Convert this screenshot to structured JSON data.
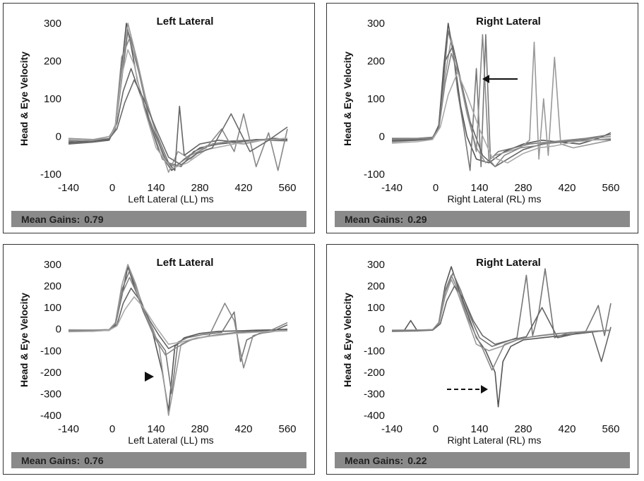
{
  "chart_data": [
    {
      "type": "line",
      "title": "Left Lateral",
      "xlabel": "Left Lateral (LL) ms",
      "ylabel": "Head & Eye Velocity",
      "xlim": [
        -140,
        560
      ],
      "ylim": [
        -100,
        300
      ],
      "xticks": [
        -140,
        0,
        140,
        280,
        420,
        560
      ],
      "yticks": [
        -100,
        0,
        100,
        200,
        300
      ],
      "mean_gains_label": "Mean Gains:",
      "mean_gains_value": "0.79",
      "series": [
        {
          "x": [
            -140,
            -60,
            -10,
            10,
            30,
            45,
            60,
            80,
            110,
            150,
            190,
            230,
            280,
            340,
            400,
            460,
            520,
            560
          ],
          "y": [
            -15,
            -12,
            -8,
            30,
            180,
            300,
            240,
            150,
            60,
            -40,
            -90,
            -60,
            -30,
            -20,
            -15,
            -10,
            -5,
            -8
          ]
        },
        {
          "x": [
            -140,
            -60,
            -10,
            10,
            30,
            50,
            70,
            100,
            140,
            180,
            220,
            260,
            320,
            380,
            440,
            500,
            560
          ],
          "y": [
            -10,
            -10,
            -5,
            20,
            150,
            280,
            230,
            120,
            10,
            -70,
            -80,
            -40,
            -20,
            -12,
            -10,
            -8,
            -5
          ]
        },
        {
          "x": [
            -140,
            -60,
            -10,
            10,
            30,
            50,
            80,
            110,
            150,
            180,
            210,
            250,
            300,
            360,
            420,
            480,
            560
          ],
          "y": [
            -5,
            -8,
            0,
            25,
            170,
            300,
            200,
            90,
            -20,
            -95,
            -40,
            -60,
            -25,
            -15,
            -20,
            -10,
            -12
          ]
        },
        {
          "x": [
            -140,
            -60,
            -10,
            15,
            35,
            60,
            90,
            130,
            170,
            200,
            215,
            230,
            280,
            340,
            400,
            460,
            560
          ],
          "y": [
            -20,
            -15,
            -10,
            35,
            120,
            180,
            110,
            20,
            -60,
            -90,
            80,
            -50,
            -20,
            -10,
            -15,
            -8,
            -10
          ]
        },
        {
          "x": [
            -140,
            -60,
            -10,
            10,
            30,
            55,
            85,
            120,
            160,
            200,
            250,
            300,
            350,
            390,
            420,
            460,
            500,
            530,
            560
          ],
          "y": [
            -12,
            -8,
            -5,
            30,
            210,
            260,
            170,
            40,
            -60,
            -80,
            -50,
            -30,
            20,
            -40,
            60,
            -80,
            10,
            -90,
            20
          ]
        },
        {
          "x": [
            -140,
            -60,
            -10,
            10,
            30,
            50,
            70,
            100,
            140,
            190,
            240,
            300,
            360,
            420,
            480,
            560
          ],
          "y": [
            -8,
            -10,
            -5,
            25,
            160,
            230,
            190,
            80,
            -30,
            -85,
            -70,
            -35,
            -25,
            -15,
            -10,
            -5
          ]
        },
        {
          "x": [
            -140,
            -60,
            -10,
            15,
            40,
            70,
            100,
            140,
            180,
            220,
            270,
            320,
            380,
            440,
            500,
            560
          ],
          "y": [
            -18,
            -12,
            -6,
            20,
            90,
            150,
            100,
            20,
            -55,
            -75,
            -45,
            -30,
            60,
            -40,
            -10,
            25
          ]
        }
      ]
    },
    {
      "type": "line",
      "title": "Right Lateral",
      "xlabel": "Right Lateral (RL) ms",
      "ylabel": "Head & Eye Velocity",
      "xlim": [
        -140,
        560
      ],
      "ylim": [
        -100,
        300
      ],
      "xticks": [
        -140,
        0,
        140,
        280,
        420,
        560
      ],
      "yticks": [
        -100,
        0,
        100,
        200,
        300
      ],
      "mean_gains_label": "Mean Gains:",
      "mean_gains_value": "0.29",
      "series": [
        {
          "x": [
            -140,
            -60,
            -10,
            10,
            25,
            40,
            60,
            80,
            100,
            130,
            170,
            220,
            280,
            340,
            400,
            460,
            520,
            560
          ],
          "y": [
            -10,
            -8,
            -5,
            30,
            180,
            300,
            200,
            80,
            0,
            -60,
            -70,
            -40,
            -20,
            -10,
            -15,
            -20,
            -5,
            10
          ]
        },
        {
          "x": [
            -140,
            -60,
            -10,
            10,
            25,
            40,
            55,
            70,
            90,
            110,
            130,
            145,
            160,
            175,
            200,
            250,
            300,
            360,
            420,
            480,
            560
          ],
          "y": [
            -5,
            -5,
            -2,
            25,
            150,
            280,
            230,
            120,
            20,
            -90,
            180,
            -80,
            270,
            -60,
            -40,
            -30,
            -20,
            -15,
            -10,
            -5,
            5
          ]
        },
        {
          "x": [
            -140,
            -60,
            -10,
            10,
            30,
            50,
            70,
            100,
            130,
            160,
            190,
            230,
            270,
            300,
            315,
            330,
            345,
            360,
            380,
            400,
            440,
            500,
            560
          ],
          "y": [
            -15,
            -10,
            -5,
            20,
            160,
            260,
            180,
            60,
            -30,
            -70,
            -50,
            -40,
            -30,
            -10,
            250,
            -60,
            100,
            -50,
            210,
            -20,
            -30,
            -20,
            -10
          ]
        },
        {
          "x": [
            -140,
            -60,
            -10,
            10,
            30,
            55,
            80,
            110,
            150,
            190,
            230,
            280,
            340,
            400,
            460,
            560
          ],
          "y": [
            -12,
            -10,
            -6,
            30,
            200,
            240,
            150,
            40,
            -50,
            -80,
            -60,
            -35,
            -20,
            -15,
            -10,
            -8
          ]
        },
        {
          "x": [
            -140,
            -60,
            -10,
            10,
            30,
            50,
            75,
            100,
            130,
            150,
            170,
            190,
            220,
            270,
            320,
            380,
            440,
            500,
            560
          ],
          "y": [
            -8,
            -6,
            -4,
            20,
            140,
            220,
            160,
            70,
            -40,
            270,
            -60,
            -80,
            -50,
            -30,
            -25,
            -15,
            -10,
            -5,
            0
          ]
        },
        {
          "x": [
            -140,
            -60,
            -10,
            15,
            40,
            70,
            100,
            140,
            180,
            230,
            280,
            330,
            380,
            440,
            500,
            560
          ],
          "y": [
            -18,
            -14,
            -8,
            25,
            110,
            170,
            110,
            20,
            -55,
            -70,
            -45,
            -30,
            -25,
            -15,
            -10,
            -5
          ]
        }
      ]
    },
    {
      "type": "line",
      "title": "Left Lateral",
      "xlabel": "Left Lateral (LL) ms",
      "ylabel": "Head & Eye Velocity",
      "xlim": [
        -140,
        560
      ],
      "ylim": [
        -400,
        300
      ],
      "xticks": [
        -140,
        0,
        140,
        280,
        420,
        560
      ],
      "yticks": [
        -400,
        -300,
        -200,
        -100,
        0,
        100,
        200,
        300
      ],
      "mean_gains_label": "Mean Gains:",
      "mean_gains_value": "0.76",
      "series": [
        {
          "x": [
            -140,
            -60,
            -10,
            10,
            30,
            50,
            70,
            100,
            130,
            160,
            180,
            200,
            230,
            280,
            340,
            400,
            460,
            520,
            560
          ],
          "y": [
            -5,
            -5,
            -3,
            20,
            150,
            290,
            200,
            80,
            -20,
            -200,
            -380,
            -80,
            -40,
            -20,
            -10,
            -8,
            -5,
            -3,
            0
          ]
        },
        {
          "x": [
            -140,
            -60,
            -10,
            10,
            30,
            55,
            80,
            110,
            140,
            170,
            190,
            210,
            240,
            290,
            350,
            390,
            410,
            430,
            470,
            520,
            560
          ],
          "y": [
            -8,
            -6,
            -4,
            25,
            180,
            270,
            180,
            60,
            -40,
            -100,
            -300,
            -60,
            -40,
            -25,
            -15,
            80,
            -150,
            -50,
            -20,
            -10,
            -5
          ]
        },
        {
          "x": [
            -140,
            -60,
            -10,
            10,
            30,
            50,
            75,
            100,
            130,
            150,
            180,
            220,
            260,
            320,
            380,
            440,
            500,
            560
          ],
          "y": [
            -3,
            -4,
            -2,
            30,
            200,
            300,
            210,
            90,
            0,
            -80,
            -400,
            -70,
            -45,
            -30,
            -20,
            -15,
            -10,
            -5
          ]
        },
        {
          "x": [
            -140,
            -60,
            -10,
            15,
            35,
            60,
            90,
            120,
            150,
            180,
            220,
            280,
            340,
            400,
            460,
            520,
            560
          ],
          "y": [
            -10,
            -8,
            -6,
            20,
            120,
            190,
            130,
            40,
            -30,
            -90,
            -60,
            -40,
            -25,
            -15,
            -10,
            -5,
            20
          ]
        },
        {
          "x": [
            -140,
            -60,
            -10,
            10,
            30,
            55,
            80,
            110,
            140,
            170,
            200,
            250,
            310,
            360,
            390,
            420,
            450,
            500,
            560
          ],
          "y": [
            -6,
            -5,
            -3,
            25,
            160,
            240,
            160,
            50,
            -50,
            -120,
            -90,
            -50,
            -30,
            120,
            40,
            -180,
            -30,
            -10,
            30
          ]
        },
        {
          "x": [
            -140,
            -60,
            -10,
            15,
            40,
            70,
            100,
            140,
            180,
            220,
            270,
            330,
            390,
            450,
            510,
            560
          ],
          "y": [
            -12,
            -10,
            -5,
            15,
            90,
            150,
            100,
            10,
            -70,
            -60,
            -40,
            -30,
            -20,
            -15,
            -10,
            -8
          ]
        }
      ]
    },
    {
      "type": "line",
      "title": "Right Lateral",
      "xlabel": "Right Lateral (RL) ms",
      "ylabel": "Head & Eye Velocity",
      "xlim": [
        -140,
        560
      ],
      "ylim": [
        -400,
        300
      ],
      "xticks": [
        -140,
        0,
        140,
        280,
        420,
        560
      ],
      "yticks": [
        -400,
        -300,
        -200,
        -100,
        0,
        100,
        200,
        300
      ],
      "mean_gains_label": "Mean Gains:",
      "mean_gains_value": "0.22",
      "series": [
        {
          "x": [
            -140,
            -100,
            -80,
            -60,
            -10,
            10,
            30,
            50,
            70,
            100,
            130,
            160,
            190,
            200,
            215,
            240,
            280,
            340,
            400,
            460,
            520,
            560
          ],
          "y": [
            -5,
            -5,
            40,
            -5,
            -3,
            30,
            200,
            290,
            200,
            80,
            -40,
            -100,
            -200,
            -360,
            -150,
            -80,
            -50,
            -40,
            -30,
            -20,
            -10,
            -5
          ]
        },
        {
          "x": [
            -140,
            -60,
            -10,
            10,
            30,
            55,
            80,
            110,
            140,
            180,
            220,
            260,
            290,
            310,
            330,
            350,
            380,
            420,
            480,
            520,
            540,
            560
          ],
          "y": [
            -8,
            -6,
            -3,
            25,
            170,
            260,
            180,
            60,
            -40,
            -80,
            -60,
            -40,
            250,
            -30,
            80,
            280,
            -40,
            -20,
            -10,
            110,
            -30,
            120
          ]
        },
        {
          "x": [
            -140,
            -60,
            -10,
            10,
            30,
            50,
            70,
            100,
            130,
            170,
            210,
            260,
            310,
            370,
            430,
            490,
            560
          ],
          "y": [
            -5,
            -4,
            -2,
            20,
            150,
            230,
            170,
            50,
            -70,
            -100,
            -80,
            -50,
            -35,
            -25,
            -15,
            -10,
            -5
          ]
        },
        {
          "x": [
            -140,
            -60,
            -10,
            15,
            35,
            60,
            90,
            120,
            150,
            190,
            240,
            290,
            340,
            390,
            450,
            500,
            530,
            560
          ],
          "y": [
            -10,
            -8,
            -5,
            25,
            130,
            200,
            140,
            40,
            -30,
            -70,
            -50,
            -35,
            100,
            -40,
            -20,
            -10,
            -150,
            10
          ]
        },
        {
          "x": [
            -140,
            -60,
            -10,
            10,
            30,
            50,
            75,
            100,
            125,
            150,
            180,
            220,
            270,
            330,
            390,
            450,
            510,
            560
          ],
          "y": [
            -6,
            -5,
            -3,
            30,
            180,
            250,
            170,
            60,
            -20,
            -90,
            -190,
            -70,
            -45,
            -30,
            -20,
            -15,
            -10,
            -5
          ]
        }
      ]
    }
  ]
}
